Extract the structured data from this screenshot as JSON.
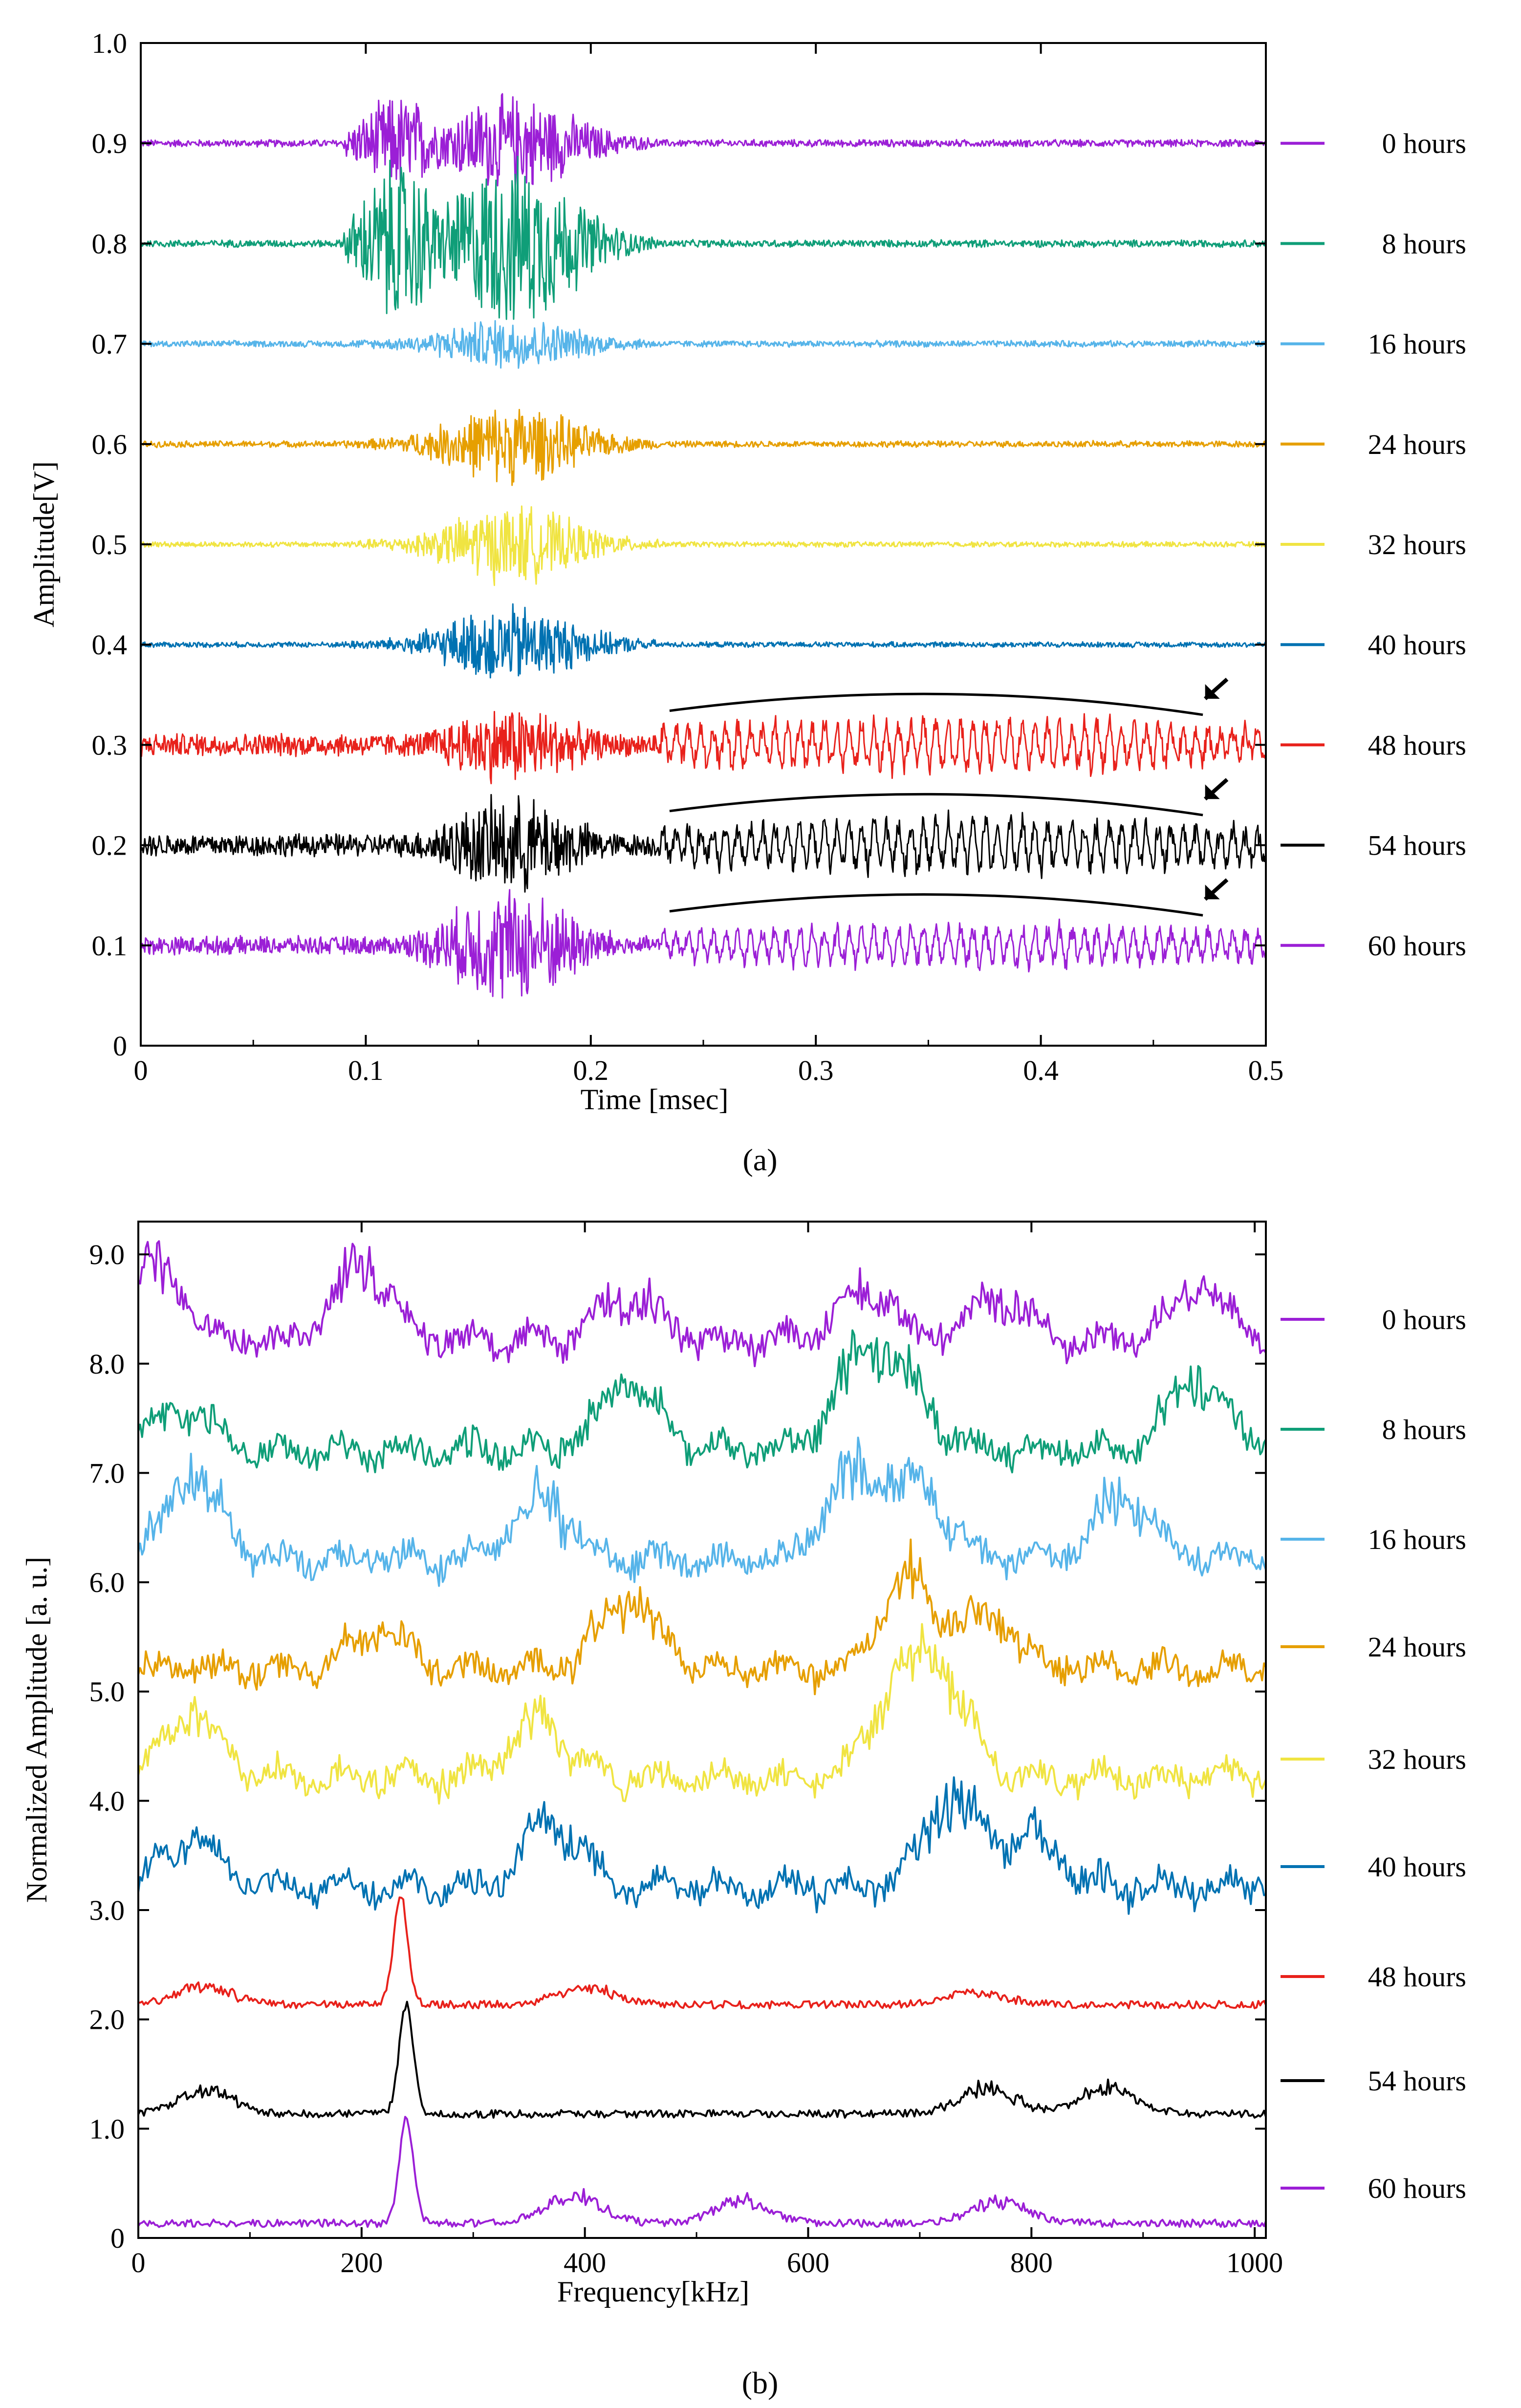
{
  "figure": {
    "captions": [
      "(a)",
      "(b)"
    ]
  },
  "chart_data": [
    {
      "type": "line",
      "panel": "(a)",
      "title": "",
      "xlabel": "Time [msec]",
      "ylabel": "Amplitude[V]",
      "xlim": [
        0,
        0.5
      ],
      "ylim": [
        0,
        1.0
      ],
      "xticks": [
        0,
        0.1,
        0.2,
        0.3,
        0.4,
        0.5
      ],
      "xtick_labels": [
        "0",
        "0.1",
        "0.2",
        "0.3",
        "0.4",
        "0.5"
      ],
      "yticks": [
        0,
        0.1,
        0.2,
        0.3,
        0.4,
        0.5,
        0.6,
        0.7,
        0.8,
        0.9,
        1.0
      ],
      "ytick_labels": [
        "0",
        "0.1",
        "0.2",
        "0.3",
        "0.4",
        "0.5",
        "0.6",
        "0.7",
        "0.8",
        "0.9",
        "1.0"
      ],
      "legend_position": "right",
      "annotations": "curved brackets with arrows over 0.23–0.47 msec marking late oscillations in the 48, 54 and 60 hours traces",
      "series": [
        {
          "name": "0 hours",
          "color": "#9b1fd6",
          "baseline": 0.9,
          "burst_amplitude": 0.05,
          "late_amplitude": 0.008,
          "late_oscillation": false
        },
        {
          "name": "8 hours",
          "color": "#0f9e78",
          "baseline": 0.8,
          "burst_amplitude": 0.09,
          "late_amplitude": 0.008,
          "late_oscillation": false
        },
        {
          "name": "16 hours",
          "color": "#56b4e9",
          "baseline": 0.7,
          "burst_amplitude": 0.025,
          "late_amplitude": 0.007,
          "late_oscillation": false
        },
        {
          "name": "24 hours",
          "color": "#e69f00",
          "baseline": 0.6,
          "burst_amplitude": 0.04,
          "late_amplitude": 0.007,
          "late_oscillation": false
        },
        {
          "name": "32 hours",
          "color": "#f0e442",
          "baseline": 0.5,
          "burst_amplitude": 0.04,
          "late_amplitude": 0.006,
          "late_oscillation": false
        },
        {
          "name": "40 hours",
          "color": "#0072b2",
          "baseline": 0.4,
          "burst_amplitude": 0.04,
          "late_amplitude": 0.006,
          "late_oscillation": false
        },
        {
          "name": "48 hours",
          "color": "#e8211b",
          "baseline": 0.3,
          "burst_amplitude": 0.04,
          "late_amplitude": 0.025,
          "late_oscillation": true
        },
        {
          "name": "54 hours",
          "color": "#000000",
          "baseline": 0.2,
          "burst_amplitude": 0.05,
          "late_amplitude": 0.025,
          "late_oscillation": true
        },
        {
          "name": "60 hours",
          "color": "#9b1fd6",
          "baseline": 0.1,
          "burst_amplitude": 0.06,
          "late_amplitude": 0.02,
          "late_oscillation": true
        }
      ]
    },
    {
      "type": "line",
      "panel": "(b)",
      "title": "",
      "xlabel": "Frequency[kHz]",
      "ylabel": "Normalized Amplitude [a. u.]",
      "xlim": [
        0,
        1010
      ],
      "ylim": [
        0,
        9.3
      ],
      "xticks": [
        0,
        200,
        400,
        600,
        800,
        1000
      ],
      "xtick_labels": [
        "0",
        "200",
        "400",
        "600",
        "800",
        "1000"
      ],
      "yticks": [
        0,
        1,
        2,
        3,
        4,
        5,
        6,
        7,
        8,
        9
      ],
      "ytick_labels": [
        "0",
        "1.0",
        "2.0",
        "3.0",
        "4.0",
        "5.0",
        "6.0",
        "7.0",
        "8.0",
        "9.0"
      ],
      "legend_position": "right",
      "series": [
        {
          "name": "0 hours",
          "color": "#9b1fd6",
          "baseline": 8.0,
          "peaks": [
            [
              15,
              0.9
            ],
            [
              200,
              0.85
            ],
            [
              440,
              0.55
            ],
            [
              650,
              0.6
            ],
            [
              770,
              0.5
            ],
            [
              950,
              0.6
            ]
          ]
        },
        {
          "name": "8 hours",
          "color": "#0f9e78",
          "baseline": 7.0,
          "peaks": [
            [
              40,
              0.5
            ],
            [
              440,
              0.8
            ],
            [
              650,
              1.0
            ],
            [
              690,
              0.6
            ],
            [
              950,
              0.85
            ]
          ]
        },
        {
          "name": "16 hours",
          "color": "#56b4e9",
          "baseline": 6.0,
          "peaks": [
            [
              50,
              0.9
            ],
            [
              360,
              0.75
            ],
            [
              640,
              0.95
            ],
            [
              700,
              0.8
            ],
            [
              880,
              0.7
            ]
          ]
        },
        {
          "name": "24 hours",
          "color": "#e69f00",
          "baseline": 5.0,
          "peaks": [
            [
              215,
              0.45
            ],
            [
              440,
              0.8
            ],
            [
              690,
              1.0
            ],
            [
              760,
              0.55
            ]
          ]
        },
        {
          "name": "32 hours",
          "color": "#f0e442",
          "baseline": 4.0,
          "peaks": [
            [
              50,
              0.7
            ],
            [
              360,
              0.7
            ],
            [
              680,
              1.0
            ],
            [
              720,
              0.95
            ]
          ]
        },
        {
          "name": "40 hours",
          "color": "#0072b2",
          "baseline": 3.0,
          "peaks": [
            [
              50,
              0.55
            ],
            [
              370,
              0.75
            ],
            [
              730,
              1.0
            ],
            [
              800,
              0.55
            ]
          ]
        },
        {
          "name": "48 hours",
          "color": "#e8211b",
          "baseline": 2.0,
          "peaks": [
            [
              235,
              1.0
            ],
            [
              60,
              0.2
            ],
            [
              400,
              0.2
            ],
            [
              750,
              0.15
            ]
          ]
        },
        {
          "name": "54 hours",
          "color": "#000000",
          "baseline": 1.0,
          "peaks": [
            [
              240,
              1.0
            ],
            [
              60,
              0.25
            ],
            [
              760,
              0.3
            ],
            [
              870,
              0.3
            ]
          ]
        },
        {
          "name": "60 hours",
          "color": "#9b1fd6",
          "baseline": 0.0,
          "peaks": [
            [
              240,
              0.95
            ],
            [
              390,
              0.3
            ],
            [
              540,
              0.25
            ],
            [
              770,
              0.25
            ]
          ]
        }
      ]
    }
  ]
}
